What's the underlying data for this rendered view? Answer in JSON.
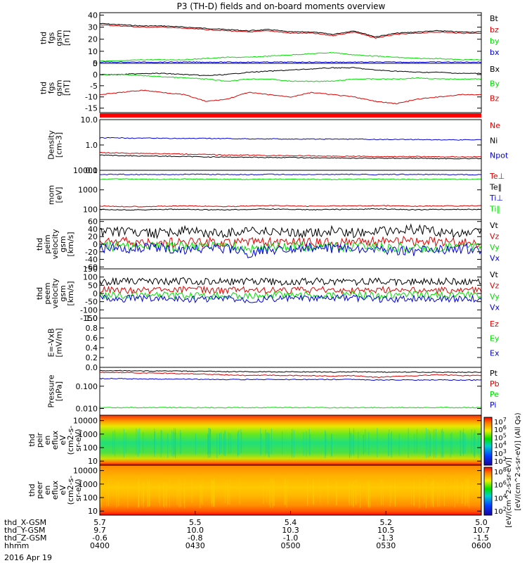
{
  "title": "P3 (TH-D) fields and on-board moments overview",
  "date_label": "2016 Apr 19",
  "colors": {
    "black": "#000000",
    "red": "#dd0000",
    "green": "#00dd00",
    "blue": "#0000dd",
    "grey": "#888888"
  },
  "chart_data": [
    {
      "type": "line",
      "id": "p1",
      "ylabel": [
        "thd",
        "fgs",
        "gsm",
        "[nT]"
      ],
      "ylim": [
        0,
        42
      ],
      "yticks": [
        "0",
        "10",
        "20",
        "30",
        "40"
      ],
      "series": [
        {
          "name": "Bt",
          "color": "black",
          "y": [
            33,
            32,
            31,
            31,
            30,
            29,
            28,
            27,
            28,
            26,
            26,
            24,
            27,
            22,
            25,
            26,
            27,
            26,
            26
          ]
        },
        {
          "name": "bz",
          "color": "red",
          "y": [
            32,
            31,
            30,
            30,
            29,
            28,
            27,
            26,
            27,
            25,
            25,
            23,
            26,
            21,
            24,
            25,
            26,
            25,
            25
          ]
        },
        {
          "name": "by",
          "color": "green",
          "y": [
            2,
            2,
            3,
            3,
            3,
            4,
            5,
            5,
            6,
            7,
            8,
            9,
            7,
            6,
            5,
            4,
            4,
            3,
            3
          ]
        },
        {
          "name": "bx",
          "color": "blue",
          "y": [
            1,
            1,
            1,
            1,
            1,
            1,
            1,
            1,
            1,
            1,
            1,
            1,
            1,
            1,
            1,
            1,
            1,
            1,
            1
          ]
        }
      ]
    },
    {
      "type": "line",
      "id": "p2",
      "ylabel": [
        "thd",
        "fgs",
        "gsm",
        "[nT]"
      ],
      "ylim": [
        -17,
        5
      ],
      "yticks": [
        "5",
        "0",
        "-5",
        "-10",
        "-15"
      ],
      "series": [
        {
          "name": "Bx",
          "color": "black",
          "y": [
            0,
            0,
            0.5,
            0.5,
            0,
            -0.5,
            0,
            1,
            1.5,
            2,
            2.5,
            3,
            3,
            2,
            1.5,
            1,
            1,
            0.5,
            0.5
          ]
        },
        {
          "name": "By",
          "color": "green",
          "y": [
            0,
            0,
            -0.5,
            -1,
            -1.5,
            -2,
            -3,
            -2,
            -2,
            -3,
            -3,
            -3,
            -2,
            -2,
            -2,
            -1.5,
            -2,
            -2,
            -2
          ]
        },
        {
          "name": "Bz",
          "color": "red",
          "y": [
            -9,
            -8,
            -7,
            -8,
            -9,
            -12,
            -11,
            -8,
            -9,
            -10,
            -8,
            -9,
            -10,
            -12,
            -13,
            -11,
            -10,
            -9,
            -9
          ]
        }
      ]
    },
    {
      "type": "line",
      "id": "p3",
      "ylabel": [
        "Density",
        "[cm-3]"
      ],
      "ylim": [
        0.1,
        10
      ],
      "log": true,
      "yticks": [
        "10.0",
        "1.0",
        "0.1"
      ],
      "series": [
        {
          "name": "Ne",
          "color": "red",
          "y": [
            0.5,
            0.48,
            0.47,
            0.45,
            0.44,
            0.42,
            0.4,
            0.4,
            0.38,
            0.38,
            0.37,
            0.36,
            0.36,
            0.35,
            0.35,
            0.35,
            0.34,
            0.34,
            0.34
          ]
        },
        {
          "name": "Ni",
          "color": "black",
          "y": [
            0.4,
            0.38,
            0.37,
            0.36,
            0.35,
            0.34,
            0.33,
            0.33,
            0.32,
            0.32,
            0.31,
            0.31,
            0.3,
            0.3,
            0.3,
            0.3,
            0.29,
            0.29,
            0.29
          ]
        },
        {
          "name": "Npot",
          "color": "blue",
          "y": [
            1.9,
            1.9,
            1.85,
            1.85,
            1.8,
            1.8,
            1.8,
            1.75,
            1.75,
            1.7,
            1.7,
            1.7,
            1.7,
            1.65,
            1.65,
            1.65,
            1.6,
            1.6,
            1.6
          ]
        }
      ]
    },
    {
      "type": "line",
      "id": "p4",
      "ylabel": [
        "mom",
        "[eV]"
      ],
      "ylim": [
        30,
        10000
      ],
      "log": true,
      "yticks": [
        "10000",
        "1000",
        "100"
      ],
      "series": [
        {
          "name": "Te⊥",
          "color": "red",
          "y": [
            150,
            140,
            140,
            145,
            150,
            145,
            140,
            150,
            155,
            150,
            145,
            150,
            150,
            155,
            150,
            145,
            150,
            150,
            150
          ]
        },
        {
          "name": "Te‖",
          "color": "black",
          "y": [
            100,
            95,
            95,
            100,
            100,
            95,
            95,
            100,
            105,
            100,
            95,
            100,
            100,
            105,
            100,
            95,
            100,
            100,
            100
          ]
        },
        {
          "name": "Ti⊥",
          "color": "blue",
          "y": [
            6000,
            6200,
            6100,
            6000,
            6300,
            6200,
            6100,
            6000,
            6200,
            6100,
            6000,
            6100,
            6200,
            6000,
            6100,
            6200,
            6100,
            6000,
            6000
          ]
        },
        {
          "name": "Ti‖",
          "color": "green",
          "y": [
            3500,
            3600,
            3500,
            3400,
            3600,
            3500,
            3500,
            3400,
            3600,
            3500,
            3500,
            3400,
            3500,
            3600,
            3500,
            3400,
            3500,
            3500,
            3500
          ]
        }
      ]
    },
    {
      "type": "line",
      "id": "p5",
      "ylabel": [
        "thd",
        "peim",
        "velocity",
        "gsm",
        "[km/s]"
      ],
      "ylim": [
        -65,
        65
      ],
      "yticks": [
        "60",
        "40",
        "20",
        "0",
        "-20",
        "-40",
        "-60"
      ],
      "series": [
        {
          "name": "Vt",
          "color": "black",
          "y": [
            30,
            32,
            28,
            30,
            35,
            30,
            28,
            40,
            32,
            30,
            28,
            35,
            30,
            33,
            38,
            40,
            32,
            30,
            30
          ]
        },
        {
          "name": "Vz",
          "color": "red",
          "y": [
            5,
            6,
            3,
            4,
            6,
            5,
            4,
            8,
            5,
            4,
            3,
            6,
            5,
            6,
            8,
            7,
            5,
            4,
            4
          ]
        },
        {
          "name": "Vy",
          "color": "green",
          "y": [
            -5,
            -6,
            -4,
            -5,
            -7,
            -6,
            -5,
            -10,
            -8,
            -6,
            -5,
            -7,
            -6,
            -8,
            -10,
            -12,
            -8,
            -6,
            -6
          ]
        },
        {
          "name": "Vx",
          "color": "blue",
          "y": [
            -10,
            -12,
            -8,
            -10,
            -15,
            -12,
            -10,
            -25,
            -15,
            -10,
            -8,
            -12,
            -12,
            -15,
            -20,
            -18,
            -15,
            -12,
            -12
          ]
        }
      ]
    },
    {
      "type": "line",
      "id": "p6",
      "ylabel": [
        "thd",
        "peem",
        "velocity",
        "gsm",
        "[km/s]"
      ],
      "ylim": [
        -150,
        150
      ],
      "yticks": [
        "150",
        "100",
        "50",
        "0",
        "-50",
        "-100",
        "-150"
      ],
      "series": [
        {
          "name": "Vt",
          "color": "black",
          "y": [
            70,
            75,
            72,
            70,
            78,
            72,
            70,
            75,
            72,
            70,
            74,
            72,
            70,
            75,
            72,
            70,
            73,
            72,
            70
          ]
        },
        {
          "name": "Vz",
          "color": "red",
          "y": [
            20,
            22,
            18,
            20,
            25,
            20,
            18,
            22,
            20,
            18,
            22,
            20,
            18,
            22,
            20,
            18,
            20,
            20,
            18
          ]
        },
        {
          "name": "Vy",
          "color": "green",
          "y": [
            -10,
            -12,
            -8,
            -10,
            -15,
            -12,
            -10,
            -12,
            -10,
            -8,
            -12,
            -10,
            -8,
            -12,
            -10,
            -8,
            -10,
            -10,
            -8
          ]
        },
        {
          "name": "Vx",
          "color": "blue",
          "y": [
            -30,
            -32,
            -28,
            -30,
            -35,
            -32,
            -30,
            -38,
            -32,
            -30,
            -32,
            -30,
            -28,
            -32,
            -35,
            -30,
            -32,
            -30,
            -30
          ]
        }
      ]
    },
    {
      "type": "line",
      "id": "p7",
      "ylabel": [
        "E=-VxB",
        "[mV/m]"
      ],
      "ylim": [
        0,
        1.0
      ],
      "yticks": [
        "1.0",
        "0.8",
        "0.6",
        "0.4",
        "0.2",
        "0.0"
      ],
      "series": [
        {
          "name": "Ez",
          "color": "red",
          "y": []
        },
        {
          "name": "Ey",
          "color": "green",
          "y": []
        },
        {
          "name": "Ex",
          "color": "blue",
          "y": []
        }
      ]
    },
    {
      "type": "line",
      "id": "p8",
      "ylabel": [
        "Pressure",
        "[nPa]"
      ],
      "ylim": [
        0.005,
        0.7
      ],
      "log": true,
      "yticks": [
        "0.100",
        "0.010"
      ],
      "series": [
        {
          "name": "Pt",
          "color": "black",
          "y": [
            0.5,
            0.5,
            0.48,
            0.48,
            0.47,
            0.46,
            0.45,
            0.45,
            0.44,
            0.44,
            0.44,
            0.43,
            0.44,
            0.43,
            0.43,
            0.43,
            0.42,
            0.42,
            0.42
          ]
        },
        {
          "name": "Pb",
          "color": "red",
          "y": [
            0.42,
            0.41,
            0.39,
            0.38,
            0.36,
            0.35,
            0.32,
            0.3,
            0.31,
            0.3,
            0.3,
            0.28,
            0.3,
            0.25,
            0.27,
            0.3,
            0.33,
            0.3,
            0.3
          ]
        },
        {
          "name": "Pe",
          "color": "green",
          "y": [
            0.011,
            0.011,
            0.011,
            0.011,
            0.011,
            0.011,
            0.011,
            0.011,
            0.011,
            0.011,
            0.011,
            0.011,
            0.011,
            0.011,
            0.011,
            0.011,
            0.011,
            0.011,
            0.011
          ]
        },
        {
          "name": "Pi",
          "color": "blue",
          "y": [
            0.22,
            0.22,
            0.21,
            0.21,
            0.21,
            0.2,
            0.2,
            0.2,
            0.2,
            0.2,
            0.2,
            0.2,
            0.2,
            0.19,
            0.19,
            0.19,
            0.19,
            0.19,
            0.19
          ]
        }
      ]
    },
    {
      "type": "heatmap",
      "id": "p9",
      "ylabel": [
        "thd",
        "peir",
        "en",
        "eflux",
        "eV",
        "(cm2-s-",
        "sr-eV)"
      ],
      "ylim": [
        5,
        25000
      ],
      "log": true,
      "yticks": [
        "10000",
        "1000",
        "100",
        "10"
      ],
      "zlim_exp": [
        2,
        7
      ],
      "profile": [
        [
          1.0,
          0.93
        ],
        [
          0.93,
          0.86
        ],
        [
          0.86,
          0.8
        ],
        [
          0.8,
          0.72
        ],
        [
          0.72,
          0.55
        ],
        [
          0.55,
          0.45
        ],
        [
          0.45,
          0.5
        ],
        [
          0.5,
          0.55
        ],
        [
          0.55,
          0.6
        ],
        [
          0.6,
          0.7
        ],
        [
          0.7,
          0.85
        ],
        [
          0.85,
          0.95
        ]
      ]
    },
    {
      "type": "heatmap",
      "id": "p10",
      "ylabel": [
        "thd",
        "peer",
        "en",
        "eflux",
        "eV",
        "(cm2-s-",
        "sr-eV)"
      ],
      "ylim": [
        5,
        25000
      ],
      "log": true,
      "yticks": [
        "10000",
        "1000",
        "100",
        "10"
      ],
      "zlim_exp": [
        2,
        8
      ],
      "profile": [
        [
          0.72,
          0.7
        ],
        [
          0.7,
          0.72
        ],
        [
          0.72,
          0.74
        ],
        [
          0.74,
          0.76
        ],
        [
          0.76,
          0.8
        ],
        [
          0.8,
          0.78
        ],
        [
          0.78,
          0.74
        ],
        [
          0.74,
          0.74
        ],
        [
          0.74,
          0.76
        ],
        [
          0.76,
          0.8
        ],
        [
          0.8,
          0.88
        ],
        [
          0.88,
          0.95
        ]
      ]
    }
  ],
  "colorbars": [
    {
      "title": "[eV/(cm^2-s-sr-eV)] (All Qs)",
      "ticks": [
        "10^7",
        "10^6",
        "10^5",
        "10^4",
        "10^3",
        "10^2"
      ]
    },
    {
      "title": "[eV/(cm^2-s-sr-eV)]",
      "ticks": [
        "10^8",
        "10^6",
        "10^4",
        "10^2"
      ]
    }
  ],
  "xaxis": {
    "rows": [
      {
        "label": "thd_X-GSM",
        "values": [
          "5.7",
          "5.5",
          "5.4",
          "5.2",
          "5.0"
        ]
      },
      {
        "label": "thd_Y-GSM",
        "values": [
          "9.7",
          "10.0",
          "10.3",
          "10.5",
          "10.7"
        ]
      },
      {
        "label": "thd_Z-GSM",
        "values": [
          "-0.6",
          "-0.8",
          "-1.0",
          "-1.3",
          "-1.5"
        ]
      },
      {
        "label": "hhmm",
        "values": [
          "0400",
          "0430",
          "0500",
          "0530",
          "0600"
        ]
      }
    ]
  }
}
